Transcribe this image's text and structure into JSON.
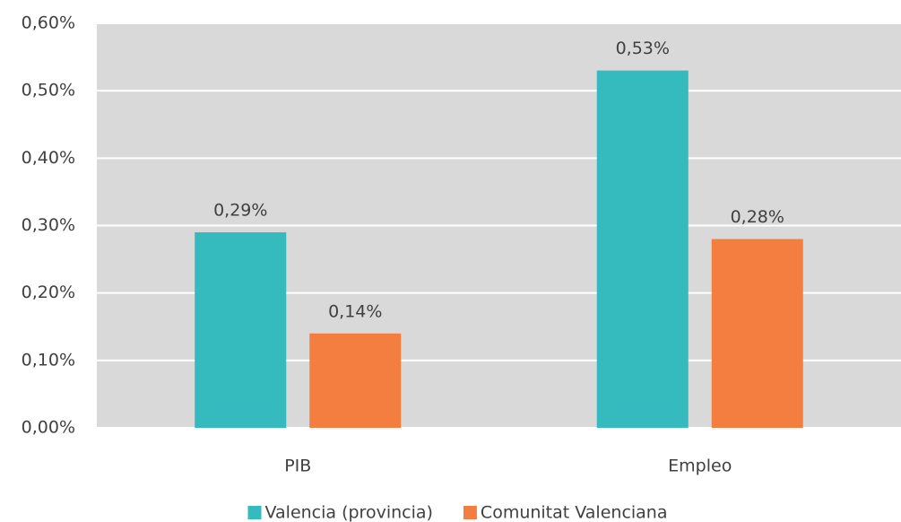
{
  "chart_data": {
    "type": "bar",
    "categories": [
      "PIB",
      "Empleo"
    ],
    "series": [
      {
        "name": "Valencia (provincia)",
        "color": "#35babd",
        "values": [
          0.29,
          0.53
        ],
        "value_labels": [
          "0,29%",
          "0,53%"
        ]
      },
      {
        "name": "Comunitat Valenciana",
        "color": "#f47e3f",
        "values": [
          0.14,
          0.28
        ],
        "value_labels": [
          "0,14%",
          "0,28%"
        ]
      }
    ],
    "ylim": [
      0,
      0.6
    ],
    "yticks": [
      {
        "value": 0,
        "label": "0,00%"
      },
      {
        "value": 0.1,
        "label": "0,10%"
      },
      {
        "value": 0.2,
        "label": "0,20%"
      },
      {
        "value": 0.3,
        "label": "0,30%"
      },
      {
        "value": 0.4,
        "label": "0,40%"
      },
      {
        "value": 0.5,
        "label": "0,50%"
      },
      {
        "value": 0.6,
        "label": "0,60%"
      }
    ],
    "grid": true,
    "legend": "bottom",
    "background": "#d9d9d9"
  }
}
